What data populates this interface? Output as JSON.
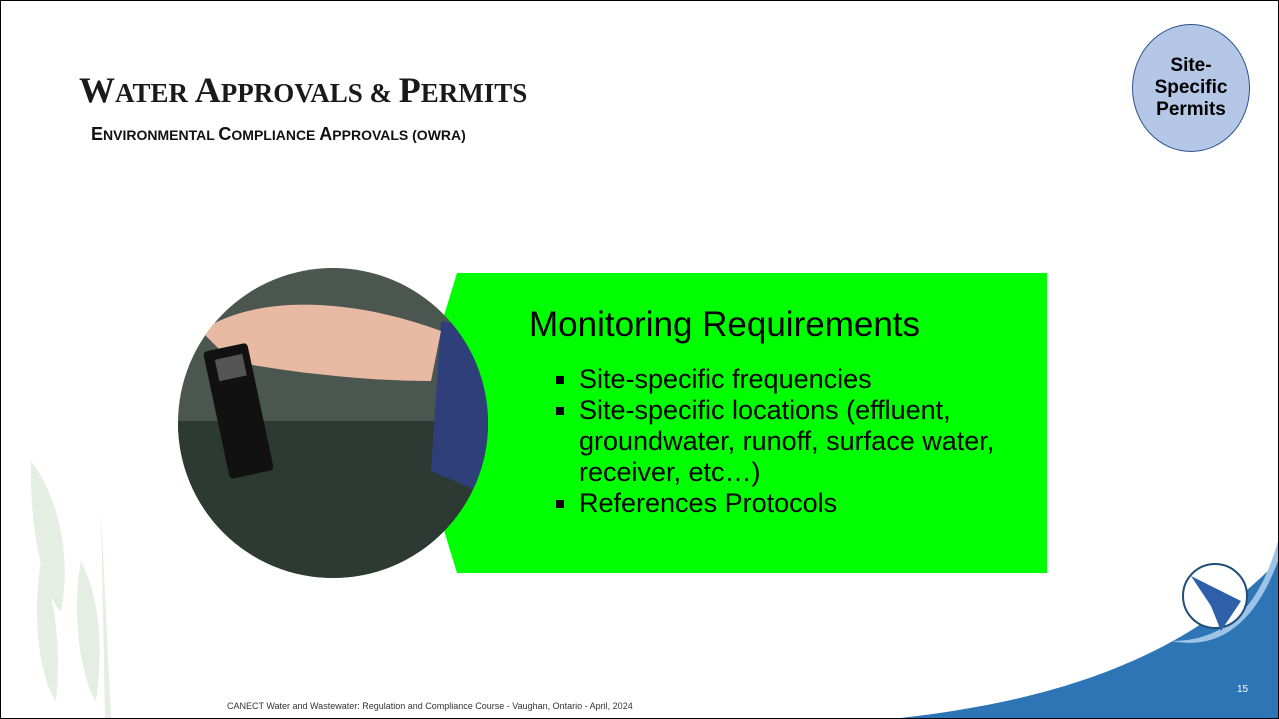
{
  "header": {
    "title_caps": [
      "W",
      "ATER ",
      "A",
      "PPROVALS & ",
      "P",
      "ERMITS"
    ],
    "subtitle_caps": [
      "E",
      "NVIRONMENTAL ",
      "C",
      "OMPLIANCE ",
      "A",
      "PPROVALS (OWRA)"
    ]
  },
  "badge": {
    "label": "Site-Specific Permits"
  },
  "panel": {
    "heading": "Monitoring Requirements",
    "bullets": [
      "Site-specific frequencies",
      "Site-specific locations (effluent, groundwater, runoff, surface water, receiver, etc…)",
      "References Protocols"
    ]
  },
  "footer": {
    "text": "CANECT Water and Wastewater: Regulation and Compliance Course - Vaughan, Ontario - April, 2024",
    "page_number": "15"
  }
}
